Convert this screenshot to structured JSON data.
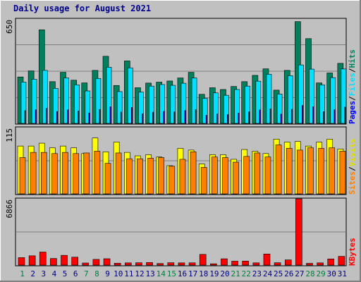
{
  "chart_data": {
    "type": "bar",
    "title": "Daily usage for August 2021",
    "categories": [
      "1",
      "2",
      "3",
      "4",
      "5",
      "6",
      "7",
      "8",
      "9",
      "10",
      "11",
      "12",
      "13",
      "14",
      "15",
      "16",
      "17",
      "18",
      "19",
      "20",
      "21",
      "22",
      "23",
      "24",
      "25",
      "26",
      "27",
      "28",
      "29",
      "30",
      "31"
    ],
    "weekend_days": [
      "1",
      "7",
      "8",
      "14",
      "15",
      "21",
      "22",
      "28",
      "29"
    ],
    "panels": [
      {
        "name": "hits-files-pages",
        "max_label": "650",
        "ylim": [
          0,
          650
        ],
        "series": [
          {
            "name": "Hits",
            "color": "#00805c",
            "values": [
              289,
              327,
              583,
              260,
              318,
              269,
              252,
              330,
              418,
              236,
              389,
              222,
              251,
              257,
              264,
              283,
              318,
              181,
              222,
              211,
              230,
              260,
              299,
              340,
              207,
              330,
              634,
              528,
              252,
              314,
              374
            ]
          },
          {
            "name": "Files",
            "color": "#00e0ff",
            "values": [
              257,
              275,
              330,
              218,
              283,
              240,
              202,
              280,
              350,
              198,
              346,
              195,
              232,
              242,
              237,
              250,
              283,
              156,
              190,
              175,
              211,
              232,
              263,
              306,
              183,
              297,
              364,
              338,
              240,
              285,
              339
            ]
          },
          {
            "name": "Pages",
            "color": "#0000ff",
            "values": [
              80,
              85,
              94,
              74,
              84,
              78,
              65,
              87,
              104,
              71,
              99,
              60,
              70,
              75,
              72,
              80,
              86,
              51,
              59,
              55,
              64,
              72,
              84,
              91,
              58,
              88,
              112,
              104,
              73,
              85,
              102
            ]
          }
        ]
      },
      {
        "name": "visits-sites",
        "max_label": "115",
        "ylim": [
          0,
          115
        ],
        "series": [
          {
            "name": "Visits",
            "color": "#ffff00",
            "values": [
              83,
              83,
              88,
              80,
              83,
              80,
              70,
              97,
              73,
              90,
              72,
              66,
              68,
              64,
              49,
              79,
              76,
              52,
              68,
              68,
              60,
              77,
              74,
              70,
              95,
              90,
              91,
              83,
              90,
              95,
              78
            ]
          },
          {
            "name": "Sites",
            "color": "#ff8000",
            "values": [
              63,
              72,
              72,
              70,
              72,
              70,
              71,
              74,
              53,
              71,
              61,
              61,
              62,
              63,
              48,
              60,
              73,
              46,
              64,
              63,
              55,
              65,
              71,
              64,
              85,
              79,
              76,
              80,
              79,
              80,
              74
            ]
          }
        ]
      },
      {
        "name": "kbytes",
        "max_label": "6866",
        "ylim": [
          0,
          6866
        ],
        "series": [
          {
            "name": "KBytes",
            "color": "#ff0000",
            "values": [
              772,
              961,
              1352,
              686,
              1011,
              819,
              217,
              591,
              658,
              195,
              229,
              242,
              264,
              164,
              243,
              229,
              234,
              1107,
              135,
              651,
              401,
              411,
              231,
              1150,
              244,
              539,
              6866,
              183,
              229,
              637,
              906
            ]
          }
        ]
      }
    ],
    "legend_separator": "/"
  }
}
